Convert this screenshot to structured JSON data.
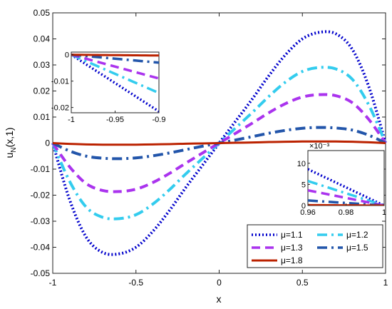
{
  "chart_data": {
    "type": "line",
    "xlabel": "x",
    "ylabel_main": "u",
    "ylabel_sub": "N",
    "ylabel_suffix": "(x,1)",
    "xlim": [
      -1,
      1
    ],
    "ylim": [
      -0.05,
      0.05
    ],
    "xticks": [
      -1,
      -0.5,
      0,
      0.5,
      1
    ],
    "xtick_labels": [
      "-1",
      "-0.5",
      "0",
      "0.5",
      "1"
    ],
    "yticks": [
      -0.05,
      -0.04,
      -0.03,
      -0.02,
      -0.01,
      0,
      0.01,
      0.02,
      0.03,
      0.04,
      0.05
    ],
    "ytick_labels": [
      "-0.05",
      "-0.04",
      "-0.03",
      "-0.02",
      "-0.01",
      "0",
      "0.01",
      "0.02",
      "0.03",
      "0.04",
      "0.05"
    ],
    "grid": false,
    "legend_position": "bottom-right",
    "series": [
      {
        "name": "μ=1.1",
        "color": "#0000cc",
        "style": "dotted",
        "x": [
          -1,
          -0.9,
          -0.8,
          -0.7,
          -0.6,
          -0.5,
          -0.4,
          -0.3,
          -0.2,
          -0.1,
          0,
          0.1,
          0.2,
          0.3,
          0.4,
          0.5,
          0.6,
          0.7,
          0.8,
          0.9,
          1
        ],
        "y": [
          0,
          -0.0215,
          -0.036,
          -0.042,
          -0.0425,
          -0.04,
          -0.034,
          -0.026,
          -0.017,
          -0.0085,
          0,
          0.0085,
          0.017,
          0.026,
          0.034,
          0.04,
          0.0425,
          0.042,
          0.036,
          0.0215,
          0
        ]
      },
      {
        "name": "μ=1.2",
        "color": "#33ccee",
        "style": "dashdot",
        "x": [
          -1,
          -0.9,
          -0.8,
          -0.7,
          -0.6,
          -0.5,
          -0.4,
          -0.3,
          -0.2,
          -0.1,
          0,
          0.1,
          0.2,
          0.3,
          0.4,
          0.5,
          0.6,
          0.7,
          0.8,
          0.9,
          1
        ],
        "y": [
          0,
          -0.0145,
          -0.0245,
          -0.0285,
          -0.029,
          -0.0275,
          -0.0235,
          -0.018,
          -0.0118,
          -0.0059,
          0,
          0.0059,
          0.0118,
          0.018,
          0.0235,
          0.0275,
          0.029,
          0.0285,
          0.0245,
          0.0145,
          0
        ]
      },
      {
        "name": "μ=1.3",
        "color": "#aa33ee",
        "style": "dashed",
        "x": [
          -1,
          -0.9,
          -0.8,
          -0.7,
          -0.6,
          -0.5,
          -0.4,
          -0.3,
          -0.2,
          -0.1,
          0,
          0.1,
          0.2,
          0.3,
          0.4,
          0.5,
          0.6,
          0.7,
          0.8,
          0.9,
          1
        ],
        "y": [
          0,
          -0.009,
          -0.0155,
          -0.0182,
          -0.0186,
          -0.0177,
          -0.0152,
          -0.0117,
          -0.0077,
          -0.0038,
          0,
          0.0038,
          0.0077,
          0.0117,
          0.0152,
          0.0177,
          0.0186,
          0.0182,
          0.0155,
          0.009,
          0
        ]
      },
      {
        "name": "μ=1.5",
        "color": "#2255aa",
        "style": "dashdot",
        "x": [
          -1,
          -0.9,
          -0.8,
          -0.7,
          -0.6,
          -0.5,
          -0.4,
          -0.3,
          -0.2,
          -0.1,
          0,
          0.1,
          0.2,
          0.3,
          0.4,
          0.5,
          0.6,
          0.7,
          0.8,
          0.9,
          1
        ],
        "y": [
          0,
          -0.003,
          -0.005,
          -0.0058,
          -0.006,
          -0.0057,
          -0.0049,
          -0.0038,
          -0.0025,
          -0.0012,
          0,
          0.0012,
          0.0025,
          0.0038,
          0.0049,
          0.0057,
          0.006,
          0.0058,
          0.005,
          0.003,
          0
        ]
      },
      {
        "name": "μ=1.8",
        "color": "#bb2200",
        "style": "solid",
        "x": [
          -1,
          -0.9,
          -0.8,
          -0.7,
          -0.6,
          -0.5,
          -0.4,
          -0.3,
          -0.2,
          -0.1,
          0,
          0.1,
          0.2,
          0.3,
          0.4,
          0.5,
          0.6,
          0.7,
          0.8,
          0.9,
          1
        ],
        "y": [
          0,
          -0.0003,
          -0.0005,
          -0.0006,
          -0.0006,
          -0.0006,
          -0.0005,
          -0.0004,
          -0.00025,
          -0.00012,
          0,
          0.00012,
          0.00025,
          0.0004,
          0.0005,
          0.0006,
          0.0006,
          0.0006,
          0.0005,
          0.0003,
          0
        ]
      }
    ],
    "insets": [
      {
        "id": "left",
        "xlim": [
          -1,
          -0.9
        ],
        "ylim": [
          -0.022,
          0.001
        ],
        "xticks": [
          -1,
          -0.95,
          -0.9
        ],
        "xtick_labels": [
          "-1",
          "-0.95",
          "-0.9"
        ],
        "yticks": [
          0,
          -0.01,
          -0.02
        ],
        "ytick_labels": [
          "0",
          "-0.01",
          "-0.02"
        ],
        "exponent_label": ""
      },
      {
        "id": "right",
        "xlim": [
          0.96,
          1
        ],
        "ylim": [
          0,
          0.013
        ],
        "xticks": [
          0.96,
          0.98,
          1
        ],
        "xtick_labels": [
          "0.96",
          "0.98",
          "1"
        ],
        "yticks": [
          0,
          0.005,
          0.01
        ],
        "ytick_labels": [
          "0",
          "5",
          "10"
        ],
        "exponent_label": "×10⁻³"
      }
    ]
  }
}
